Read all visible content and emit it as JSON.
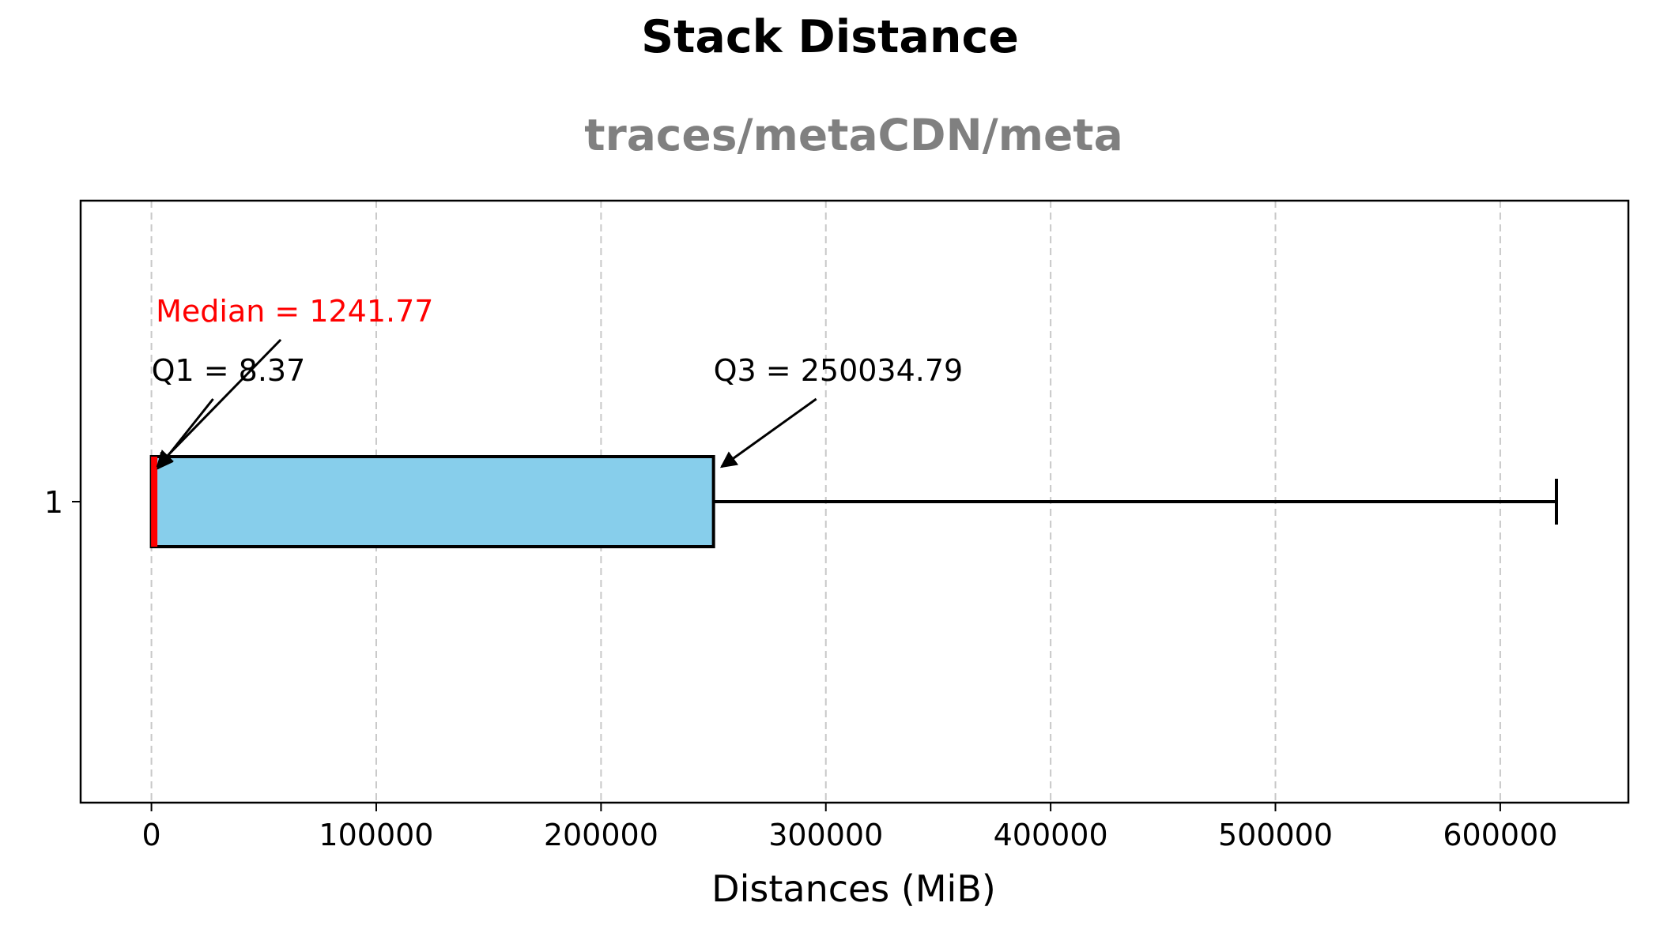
{
  "chart_data": {
    "type": "box",
    "orientation": "horizontal",
    "title": "Stack Distance",
    "subtitle": "traces/metaCDN/meta",
    "xlabel": "Distances (MiB)",
    "ylabel": "",
    "xlim": [
      -31500,
      657000
    ],
    "xticks": [
      0,
      100000,
      200000,
      300000,
      400000,
      500000,
      600000
    ],
    "xtick_labels": [
      "0",
      "100000",
      "200000",
      "300000",
      "400000",
      "500000",
      "600000"
    ],
    "ytick_labels": [
      "1"
    ],
    "grid": "x-dashed",
    "boxes": [
      {
        "label": "1",
        "whislo": 0,
        "q1": 8.37,
        "median": 1241.77,
        "q3": 250034.79,
        "whishi": 625000
      }
    ],
    "annotations": {
      "q1": "Q1 = 8.37",
      "median": "Median = 1241.77",
      "q3": "Q3 = 250034.79"
    },
    "colors": {
      "box_fill": "#87ceeb",
      "box_edge": "#000000",
      "median": "#ff0000",
      "grid": "#c8c8c8",
      "subtitle": "#808080"
    }
  }
}
